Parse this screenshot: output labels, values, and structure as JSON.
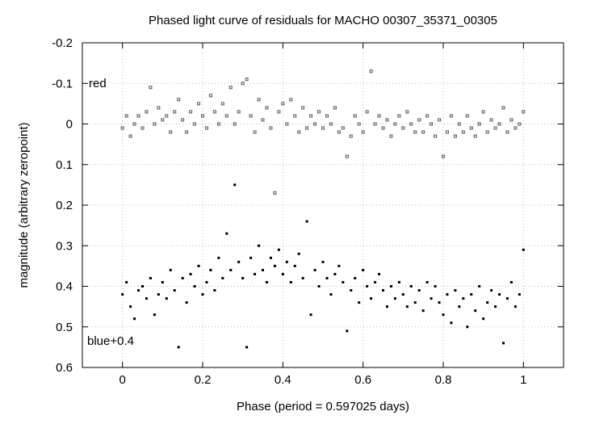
{
  "chart_data": {
    "type": "scatter",
    "title": "Phased light curve of residuals for MACHO 00307_35371_00305",
    "xlabel": "Phase (period = 0.597025 days)",
    "ylabel": "magnitude (arbitrary zeropoint)",
    "xlim": [
      -0.1,
      1.1
    ],
    "ylim": [
      0.6,
      -0.2
    ],
    "y_inverted": true,
    "grid": true,
    "x_ticks": [
      "0",
      "0.2",
      "0.4",
      "0.6",
      "0.8",
      "1"
    ],
    "y_ticks": [
      "-0.2",
      "-0.1",
      "0",
      "0.1",
      "0.2",
      "0.3",
      "0.4",
      "0.5",
      "0.6"
    ],
    "annotations": [
      {
        "text": "red",
        "x": -0.08,
        "y": -0.1
      },
      {
        "text": "blue+0.4",
        "x": -0.08,
        "y": 0.535
      }
    ],
    "series": [
      {
        "label": "red",
        "marker": "open-square",
        "color": "#555555",
        "points": [
          [
            0.0,
            0.01
          ],
          [
            0.01,
            -0.02
          ],
          [
            0.02,
            0.03
          ],
          [
            0.03,
            0.0
          ],
          [
            0.04,
            -0.02
          ],
          [
            0.05,
            0.01
          ],
          [
            0.06,
            -0.03
          ],
          [
            0.07,
            -0.09
          ],
          [
            0.08,
            0.0
          ],
          [
            0.09,
            -0.04
          ],
          [
            0.1,
            -0.01
          ],
          [
            0.11,
            -0.02
          ],
          [
            0.12,
            0.02
          ],
          [
            0.13,
            -0.03
          ],
          [
            0.14,
            -0.06
          ],
          [
            0.15,
            -0.01
          ],
          [
            0.16,
            0.02
          ],
          [
            0.17,
            -0.03
          ],
          [
            0.18,
            0.0
          ],
          [
            0.19,
            -0.05
          ],
          [
            0.2,
            -0.02
          ],
          [
            0.21,
            0.01
          ],
          [
            0.22,
            -0.07
          ],
          [
            0.23,
            -0.03
          ],
          [
            0.24,
            0.0
          ],
          [
            0.25,
            -0.05
          ],
          [
            0.26,
            -0.02
          ],
          [
            0.27,
            -0.09
          ],
          [
            0.28,
            0.0
          ],
          [
            0.29,
            -0.03
          ],
          [
            0.3,
            -0.1
          ],
          [
            0.31,
            -0.11
          ],
          [
            0.32,
            -0.02
          ],
          [
            0.33,
            0.02
          ],
          [
            0.34,
            -0.06
          ],
          [
            0.35,
            -0.01
          ],
          [
            0.36,
            -0.04
          ],
          [
            0.37,
            0.01
          ],
          [
            0.38,
            0.17
          ],
          [
            0.39,
            -0.03
          ],
          [
            0.4,
            -0.05
          ],
          [
            0.41,
            0.0
          ],
          [
            0.42,
            -0.06
          ],
          [
            0.43,
            -0.02
          ],
          [
            0.44,
            0.02
          ],
          [
            0.45,
            -0.04
          ],
          [
            0.46,
            0.01
          ],
          [
            0.47,
            -0.02
          ],
          [
            0.48,
            0.0
          ],
          [
            0.49,
            -0.03
          ],
          [
            0.5,
            0.01
          ],
          [
            0.51,
            -0.02
          ],
          [
            0.52,
            0.0
          ],
          [
            0.53,
            -0.04
          ],
          [
            0.54,
            0.02
          ],
          [
            0.55,
            0.01
          ],
          [
            0.56,
            0.08
          ],
          [
            0.57,
            0.03
          ],
          [
            0.58,
            -0.02
          ],
          [
            0.59,
            0.0
          ],
          [
            0.6,
            0.02
          ],
          [
            0.61,
            -0.03
          ],
          [
            0.62,
            -0.13
          ],
          [
            0.63,
            0.0
          ],
          [
            0.64,
            -0.02
          ],
          [
            0.65,
            0.01
          ],
          [
            0.66,
            -0.01
          ],
          [
            0.67,
            0.03
          ],
          [
            0.68,
            0.0
          ],
          [
            0.69,
            -0.02
          ],
          [
            0.7,
            0.01
          ],
          [
            0.71,
            -0.03
          ],
          [
            0.72,
            0.0
          ],
          [
            0.73,
            0.02
          ],
          [
            0.74,
            -0.01
          ],
          [
            0.75,
            0.02
          ],
          [
            0.76,
            -0.02
          ],
          [
            0.77,
            0.0
          ],
          [
            0.78,
            0.03
          ],
          [
            0.79,
            -0.01
          ],
          [
            0.8,
            0.08
          ],
          [
            0.81,
            0.02
          ],
          [
            0.82,
            -0.02
          ],
          [
            0.83,
            0.03
          ],
          [
            0.84,
            0.0
          ],
          [
            0.85,
            0.02
          ],
          [
            0.86,
            -0.02
          ],
          [
            0.87,
            0.01
          ],
          [
            0.88,
            0.03
          ],
          [
            0.89,
            0.0
          ],
          [
            0.9,
            -0.03
          ],
          [
            0.91,
            0.02
          ],
          [
            0.92,
            -0.01
          ],
          [
            0.93,
            0.01
          ],
          [
            0.94,
            0.0
          ],
          [
            0.95,
            -0.04
          ],
          [
            0.96,
            0.02
          ],
          [
            0.97,
            -0.01
          ],
          [
            0.98,
            0.01
          ],
          [
            0.99,
            0.0
          ],
          [
            1.0,
            -0.03
          ]
        ]
      },
      {
        "label": "blue+0.4",
        "marker": "filled-square",
        "color": "#000000",
        "points": [
          [
            0.0,
            0.42
          ],
          [
            0.01,
            0.39
          ],
          [
            0.02,
            0.45
          ],
          [
            0.03,
            0.48
          ],
          [
            0.04,
            0.41
          ],
          [
            0.05,
            0.4
          ],
          [
            0.06,
            0.43
          ],
          [
            0.07,
            0.38
          ],
          [
            0.08,
            0.47
          ],
          [
            0.09,
            0.42
          ],
          [
            0.1,
            0.39
          ],
          [
            0.11,
            0.43
          ],
          [
            0.12,
            0.36
          ],
          [
            0.13,
            0.41
          ],
          [
            0.14,
            0.55
          ],
          [
            0.15,
            0.38
          ],
          [
            0.16,
            0.44
          ],
          [
            0.17,
            0.37
          ],
          [
            0.18,
            0.4
          ],
          [
            0.19,
            0.35
          ],
          [
            0.2,
            0.42
          ],
          [
            0.21,
            0.39
          ],
          [
            0.22,
            0.36
          ],
          [
            0.23,
            0.41
          ],
          [
            0.24,
            0.33
          ],
          [
            0.25,
            0.38
          ],
          [
            0.26,
            0.27
          ],
          [
            0.27,
            0.36
          ],
          [
            0.28,
            0.15
          ],
          [
            0.29,
            0.34
          ],
          [
            0.3,
            0.38
          ],
          [
            0.31,
            0.55
          ],
          [
            0.32,
            0.33
          ],
          [
            0.33,
            0.37
          ],
          [
            0.34,
            0.3
          ],
          [
            0.35,
            0.36
          ],
          [
            0.36,
            0.39
          ],
          [
            0.37,
            0.33
          ],
          [
            0.38,
            0.35
          ],
          [
            0.39,
            0.31
          ],
          [
            0.4,
            0.37
          ],
          [
            0.41,
            0.34
          ],
          [
            0.42,
            0.39
          ],
          [
            0.43,
            0.35
          ],
          [
            0.44,
            0.32
          ],
          [
            0.45,
            0.38
          ],
          [
            0.46,
            0.24
          ],
          [
            0.47,
            0.47
          ],
          [
            0.48,
            0.36
          ],
          [
            0.49,
            0.4
          ],
          [
            0.5,
            0.34
          ],
          [
            0.51,
            0.38
          ],
          [
            0.52,
            0.42
          ],
          [
            0.53,
            0.37
          ],
          [
            0.54,
            0.35
          ],
          [
            0.55,
            0.39
          ],
          [
            0.56,
            0.51
          ],
          [
            0.57,
            0.41
          ],
          [
            0.58,
            0.38
          ],
          [
            0.59,
            0.44
          ],
          [
            0.6,
            0.36
          ],
          [
            0.61,
            0.4
          ],
          [
            0.62,
            0.43
          ],
          [
            0.63,
            0.39
          ],
          [
            0.64,
            0.37
          ],
          [
            0.65,
            0.41
          ],
          [
            0.66,
            0.45
          ],
          [
            0.67,
            0.4
          ],
          [
            0.68,
            0.43
          ],
          [
            0.69,
            0.39
          ],
          [
            0.7,
            0.42
          ],
          [
            0.71,
            0.45
          ],
          [
            0.72,
            0.4
          ],
          [
            0.73,
            0.44
          ],
          [
            0.74,
            0.41
          ],
          [
            0.75,
            0.46
          ],
          [
            0.76,
            0.39
          ],
          [
            0.77,
            0.43
          ],
          [
            0.78,
            0.4
          ],
          [
            0.79,
            0.44
          ],
          [
            0.8,
            0.47
          ],
          [
            0.81,
            0.42
          ],
          [
            0.82,
            0.49
          ],
          [
            0.83,
            0.41
          ],
          [
            0.84,
            0.45
          ],
          [
            0.85,
            0.43
          ],
          [
            0.86,
            0.5
          ],
          [
            0.87,
            0.42
          ],
          [
            0.88,
            0.46
          ],
          [
            0.89,
            0.4
          ],
          [
            0.9,
            0.48
          ],
          [
            0.91,
            0.44
          ],
          [
            0.92,
            0.41
          ],
          [
            0.93,
            0.45
          ],
          [
            0.94,
            0.42
          ],
          [
            0.95,
            0.54
          ],
          [
            0.96,
            0.43
          ],
          [
            0.97,
            0.39
          ],
          [
            0.98,
            0.45
          ],
          [
            0.99,
            0.42
          ],
          [
            1.0,
            0.31
          ]
        ]
      }
    ]
  }
}
